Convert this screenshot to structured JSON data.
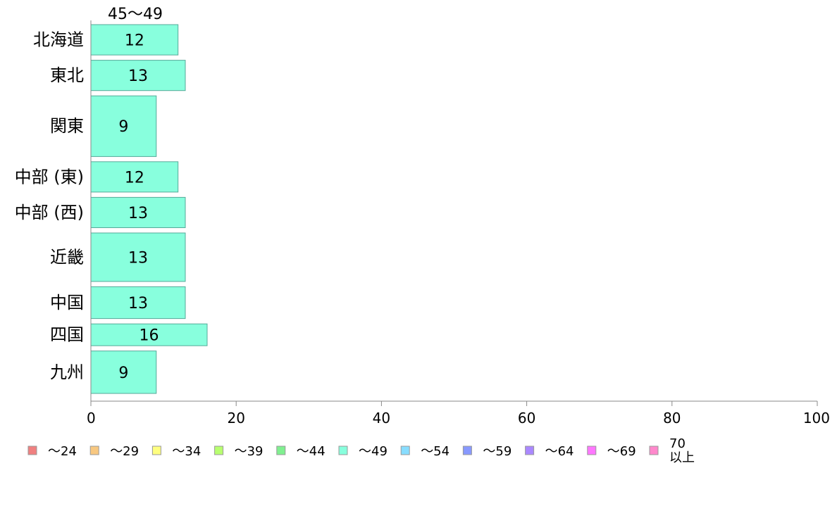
{
  "chart_data": {
    "type": "bar",
    "orientation": "horizontal",
    "column_header": "45〜49",
    "categories": [
      "北海道",
      "東北",
      "関東",
      "中部 (東)",
      "中部 (西)",
      "近畿",
      "中国",
      "四国",
      "九州"
    ],
    "values": [
      12,
      13,
      9,
      12,
      13,
      13,
      13,
      16,
      9
    ],
    "bar_labels": [
      "12",
      "13",
      "9",
      "12",
      "13",
      "13",
      "13",
      "16",
      "9"
    ],
    "row_weights": [
      1,
      1,
      2,
      1,
      1,
      1.6,
      1.05,
      0.72,
      1.4
    ],
    "xlim": [
      0,
      100
    ],
    "x_ticks": [
      0,
      20,
      40,
      60,
      80,
      100
    ],
    "x_tick_labels": [
      "0",
      "20",
      "40",
      "60",
      "80",
      "100"
    ],
    "bar_color": "#88ffdd",
    "bar_border_color": "#55aa99",
    "axis_color": "#888888",
    "legend_position": "bottom",
    "legend": [
      {
        "label": "〜24",
        "color": "#f08080"
      },
      {
        "label": "〜29",
        "color": "#f8c880"
      },
      {
        "label": "〜34",
        "color": "#ffff80"
      },
      {
        "label": "〜39",
        "color": "#b8ff70"
      },
      {
        "label": "〜44",
        "color": "#80f090"
      },
      {
        "label": "〜49",
        "color": "#88ffdd"
      },
      {
        "label": "〜54",
        "color": "#88ddff"
      },
      {
        "label": "〜59",
        "color": "#8899ff"
      },
      {
        "label": "〜64",
        "color": "#aa88ff"
      },
      {
        "label": "〜69",
        "color": "#ff77ff"
      },
      {
        "label": "70 以上",
        "color": "#ff88cc"
      }
    ]
  }
}
